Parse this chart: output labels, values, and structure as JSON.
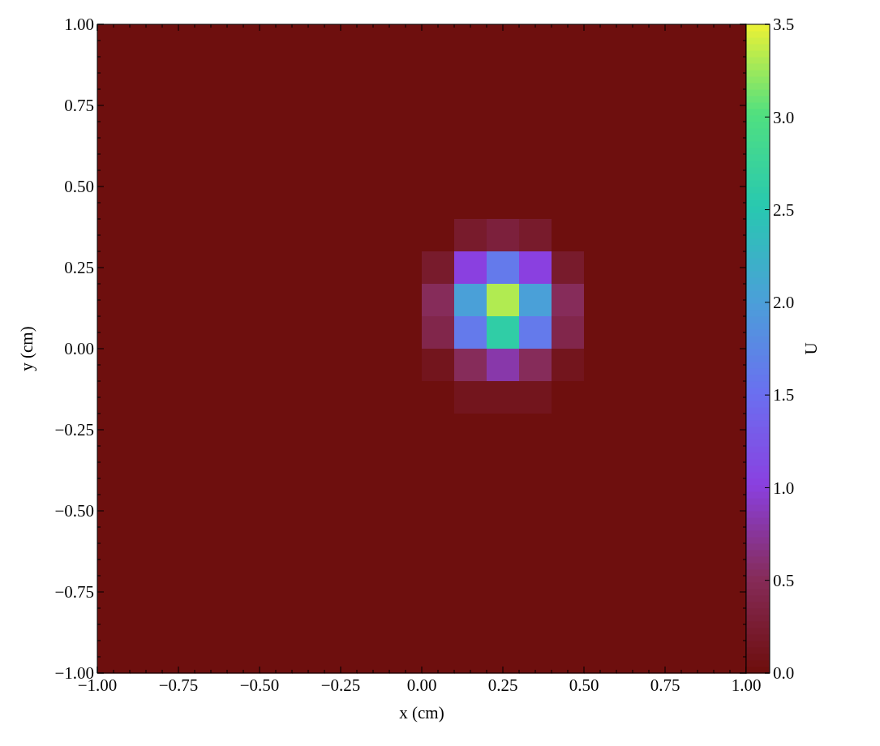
{
  "chart_data": {
    "type": "heatmap",
    "xlabel": "x  (cm)",
    "ylabel": "y  (cm)",
    "clabel": "U",
    "x": [
      -0.95,
      -0.85,
      -0.75,
      -0.65,
      -0.55,
      -0.45,
      -0.35,
      -0.25,
      -0.15,
      -0.05,
      0.05,
      0.15,
      0.25,
      0.35,
      0.45,
      0.55,
      0.65,
      0.75,
      0.85,
      0.95
    ],
    "y": [
      0.95,
      0.85,
      0.75,
      0.65,
      0.55,
      0.45,
      0.35,
      0.25,
      0.15,
      0.05,
      -0.05,
      -0.15,
      -0.25,
      -0.35,
      -0.45,
      -0.55,
      -0.65,
      -0.75,
      -0.85,
      -0.95
    ],
    "xlim": [
      -1,
      1
    ],
    "ylim": [
      -1,
      1
    ],
    "xticks": [
      {
        "value": -1,
        "label": "−1.00"
      },
      {
        "value": -0.75,
        "label": "−0.75"
      },
      {
        "value": -0.5,
        "label": "−0.50"
      },
      {
        "value": -0.25,
        "label": "−0.25"
      },
      {
        "value": 0,
        "label": "0.00"
      },
      {
        "value": 0.25,
        "label": "0.25"
      },
      {
        "value": 0.5,
        "label": "0.50"
      },
      {
        "value": 0.75,
        "label": "0.75"
      },
      {
        "value": 1,
        "label": "1.00"
      }
    ],
    "yticks": [
      {
        "value": -1,
        "label": "−1.00"
      },
      {
        "value": -0.75,
        "label": "−0.75"
      },
      {
        "value": -0.5,
        "label": "−0.50"
      },
      {
        "value": -0.25,
        "label": "−0.25"
      },
      {
        "value": 0,
        "label": "0.00"
      },
      {
        "value": 0.25,
        "label": "0.25"
      },
      {
        "value": 0.5,
        "label": "0.50"
      },
      {
        "value": 0.75,
        "label": "0.75"
      },
      {
        "value": 1,
        "label": "1.00"
      }
    ],
    "clim": [
      0,
      3.5
    ],
    "cticks": [
      {
        "value": 0,
        "label": "0.0"
      },
      {
        "value": 0.5,
        "label": "0.5"
      },
      {
        "value": 1,
        "label": "1.0"
      },
      {
        "value": 1.5,
        "label": "1.5"
      },
      {
        "value": 2,
        "label": "2.0"
      },
      {
        "value": 2.5,
        "label": "2.5"
      },
      {
        "value": 3,
        "label": "3.0"
      },
      {
        "value": 3.5,
        "label": "3.5"
      }
    ],
    "cells": [
      [
        0,
        0,
        0,
        0,
        0,
        0,
        0,
        0,
        0,
        0,
        0,
        0,
        0,
        0,
        0,
        0,
        0,
        0,
        0,
        0
      ],
      [
        0,
        0,
        0,
        0,
        0,
        0,
        0,
        0,
        0,
        0,
        0,
        0,
        0,
        0,
        0,
        0,
        0,
        0,
        0,
        0
      ],
      [
        0,
        0,
        0,
        0,
        0,
        0,
        0,
        0,
        0,
        0,
        0,
        0,
        0,
        0,
        0,
        0,
        0,
        0,
        0,
        0
      ],
      [
        0,
        0,
        0,
        0,
        0,
        0,
        0,
        0,
        0,
        0,
        0,
        0,
        0,
        0,
        0,
        0,
        0,
        0,
        0,
        0
      ],
      [
        0,
        0,
        0,
        0,
        0,
        0,
        0,
        0,
        0,
        0,
        0,
        0,
        0,
        0,
        0,
        0,
        0,
        0,
        0,
        0
      ],
      [
        0,
        0,
        0,
        0,
        0,
        0,
        0,
        0,
        0,
        0,
        0,
        0,
        0,
        0,
        0,
        0,
        0,
        0,
        0,
        0
      ],
      [
        0,
        0,
        0,
        0,
        0,
        0,
        0,
        0,
        0,
        0,
        0,
        0.2,
        0.3,
        0.2,
        0,
        0,
        0,
        0,
        0,
        0
      ],
      [
        0,
        0,
        0,
        0,
        0,
        0,
        0,
        0,
        0,
        0,
        0.2,
        1.0,
        1.6,
        1.0,
        0.2,
        0,
        0,
        0,
        0,
        0
      ],
      [
        0,
        0,
        0,
        0,
        0,
        0,
        0,
        0,
        0,
        0,
        0.5,
        2.0,
        3.3,
        2.0,
        0.5,
        0,
        0,
        0,
        0,
        0
      ],
      [
        0,
        0,
        0,
        0,
        0,
        0,
        0,
        0,
        0,
        0,
        0.4,
        1.6,
        2.6,
        1.6,
        0.4,
        0,
        0,
        0,
        0,
        0
      ],
      [
        0,
        0,
        0,
        0,
        0,
        0,
        0,
        0,
        0,
        0,
        0.1,
        0.5,
        0.8,
        0.5,
        0.1,
        0,
        0,
        0,
        0,
        0
      ],
      [
        0,
        0,
        0,
        0,
        0,
        0,
        0,
        0,
        0,
        0,
        0,
        0.1,
        0.1,
        0.1,
        0,
        0,
        0,
        0,
        0,
        0
      ],
      [
        0,
        0,
        0,
        0,
        0,
        0,
        0,
        0,
        0,
        0,
        0,
        0,
        0,
        0,
        0,
        0,
        0,
        0,
        0,
        0
      ],
      [
        0,
        0,
        0,
        0,
        0,
        0,
        0,
        0,
        0,
        0,
        0,
        0,
        0,
        0,
        0,
        0,
        0,
        0,
        0,
        0
      ],
      [
        0,
        0,
        0,
        0,
        0,
        0,
        0,
        0,
        0,
        0,
        0,
        0,
        0,
        0,
        0,
        0,
        0,
        0,
        0,
        0
      ],
      [
        0,
        0,
        0,
        0,
        0,
        0,
        0,
        0,
        0,
        0,
        0,
        0,
        0,
        0,
        0,
        0,
        0,
        0,
        0,
        0
      ],
      [
        0,
        0,
        0,
        0,
        0,
        0,
        0,
        0,
        0,
        0,
        0,
        0,
        0,
        0,
        0,
        0,
        0,
        0,
        0,
        0
      ],
      [
        0,
        0,
        0,
        0,
        0,
        0,
        0,
        0,
        0,
        0,
        0,
        0,
        0,
        0,
        0,
        0,
        0,
        0,
        0,
        0
      ],
      [
        0,
        0,
        0,
        0,
        0,
        0,
        0,
        0,
        0,
        0,
        0,
        0,
        0,
        0,
        0,
        0,
        0,
        0,
        0,
        0
      ],
      [
        0,
        0,
        0,
        0,
        0,
        0,
        0,
        0,
        0,
        0,
        0,
        0,
        0,
        0,
        0,
        0,
        0,
        0,
        0,
        0
      ]
    ]
  }
}
